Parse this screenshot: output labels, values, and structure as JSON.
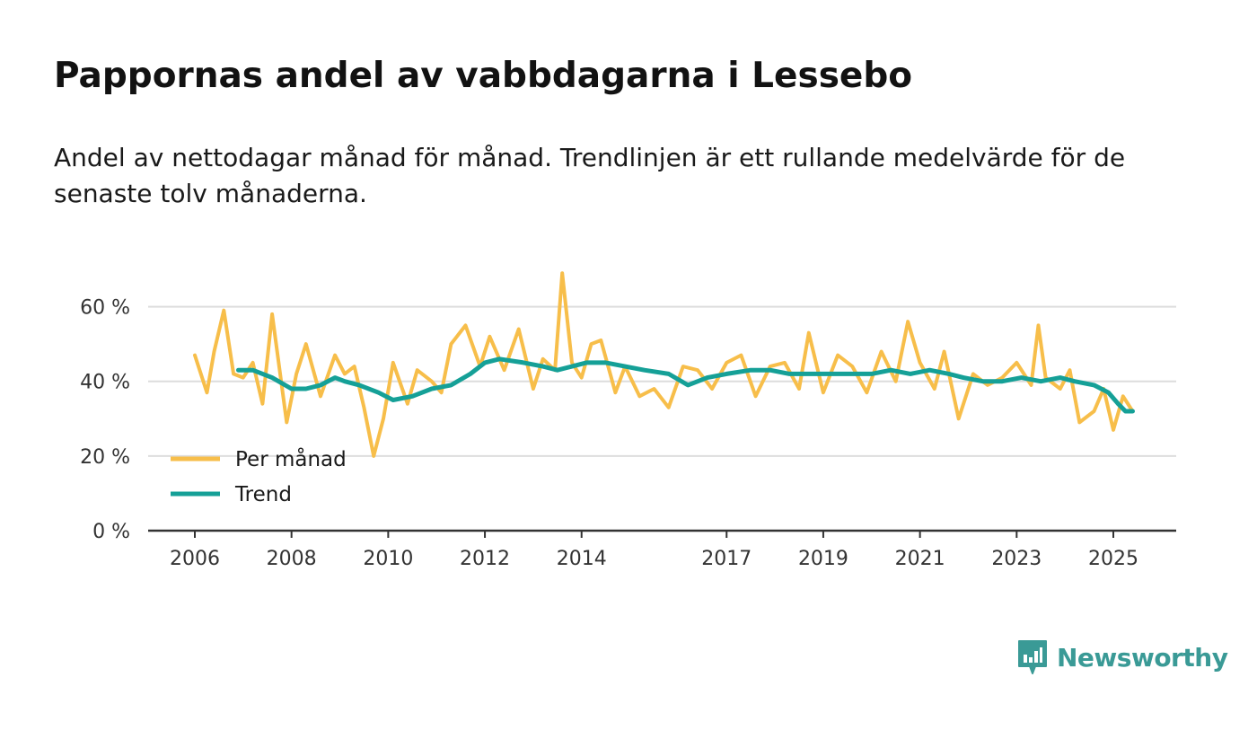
{
  "title": "Pappornas andel av vabbdagarna i Lessebo",
  "subtitle": "Andel av nettodagar månad för månad. Trendlinjen är ett rullande medelvärde för de senaste tolv månaderna.",
  "brand": {
    "name": "Newsworthy",
    "color": "#3a9a96"
  },
  "chart_data": {
    "type": "line",
    "xlim": [
      2005.5,
      2026.3
    ],
    "ylim": [
      0,
      70
    ],
    "yticks": [
      0,
      20,
      40,
      60
    ],
    "ytick_labels": [
      "0 %",
      "20 %",
      "40 %",
      "60 %"
    ],
    "xticks": [
      2006,
      2008,
      2010,
      2012,
      2014,
      2017,
      2019,
      2021,
      2023,
      2025
    ],
    "xtick_labels": [
      "2006",
      "2008",
      "2010",
      "2012",
      "2014",
      "2017",
      "2019",
      "2021",
      "2023",
      "2025"
    ],
    "grid": true,
    "legend": "bottom-left",
    "series": [
      {
        "name": "Per månad",
        "color": "#f7be4a",
        "x": [
          2006.0,
          2006.25,
          2006.4,
          2006.6,
          2006.8,
          2007.0,
          2007.2,
          2007.4,
          2007.6,
          2007.9,
          2008.1,
          2008.3,
          2008.6,
          2008.9,
          2009.1,
          2009.3,
          2009.5,
          2009.7,
          2009.9,
          2010.1,
          2010.4,
          2010.6,
          2010.9,
          2011.1,
          2011.3,
          2011.6,
          2011.9,
          2012.1,
          2012.4,
          2012.7,
          2013.0,
          2013.2,
          2013.45,
          2013.6,
          2013.8,
          2014.0,
          2014.2,
          2014.4,
          2014.7,
          2014.9,
          2015.2,
          2015.5,
          2015.8,
          2016.1,
          2016.4,
          2016.7,
          2017.0,
          2017.3,
          2017.6,
          2017.9,
          2018.2,
          2018.5,
          2018.7,
          2019.0,
          2019.3,
          2019.6,
          2019.9,
          2020.2,
          2020.5,
          2020.75,
          2021.0,
          2021.3,
          2021.5,
          2021.8,
          2022.1,
          2022.4,
          2022.7,
          2023.0,
          2023.3,
          2023.45,
          2023.6,
          2023.9,
          2024.1,
          2024.3,
          2024.6,
          2024.8,
          2025.0,
          2025.2,
          2025.4
        ],
        "values": [
          47,
          37,
          48,
          59,
          42,
          41,
          45,
          34,
          58,
          29,
          42,
          50,
          36,
          47,
          42,
          44,
          33,
          20,
          30,
          45,
          34,
          43,
          40,
          37,
          50,
          55,
          44,
          52,
          43,
          54,
          38,
          46,
          43,
          69,
          45,
          41,
          50,
          51,
          37,
          44,
          36,
          38,
          33,
          44,
          43,
          38,
          45,
          47,
          36,
          44,
          45,
          38,
          53,
          37,
          47,
          44,
          37,
          48,
          40,
          56,
          45,
          38,
          48,
          30,
          42,
          39,
          41,
          45,
          39,
          55,
          41,
          38,
          43,
          29,
          32,
          38,
          27,
          36,
          32
        ]
      },
      {
        "name": "Trend",
        "color": "#15a097",
        "x": [
          2006.9,
          2007.2,
          2007.6,
          2008.0,
          2008.3,
          2008.6,
          2008.9,
          2009.1,
          2009.4,
          2009.8,
          2010.1,
          2010.5,
          2010.9,
          2011.3,
          2011.7,
          2012.0,
          2012.3,
          2012.8,
          2013.2,
          2013.5,
          2013.8,
          2014.1,
          2014.5,
          2014.9,
          2015.3,
          2015.8,
          2016.2,
          2016.6,
          2017.0,
          2017.5,
          2017.9,
          2018.3,
          2018.8,
          2019.2,
          2019.6,
          2020.0,
          2020.4,
          2020.8,
          2021.2,
          2021.6,
          2021.9,
          2022.3,
          2022.7,
          2023.1,
          2023.5,
          2023.9,
          2024.2,
          2024.6,
          2024.9,
          2025.1,
          2025.25,
          2025.4
        ],
        "values": [
          43,
          43,
          41,
          38,
          38,
          39,
          41,
          40,
          39,
          37,
          35,
          36,
          38,
          39,
          42,
          45,
          46,
          45,
          44,
          43,
          44,
          45,
          45,
          44,
          43,
          42,
          39,
          41,
          42,
          43,
          43,
          42,
          42,
          42,
          42,
          42,
          43,
          42,
          43,
          42,
          41,
          40,
          40,
          41,
          40,
          41,
          40,
          39,
          37,
          34,
          32,
          32
        ]
      }
    ]
  }
}
